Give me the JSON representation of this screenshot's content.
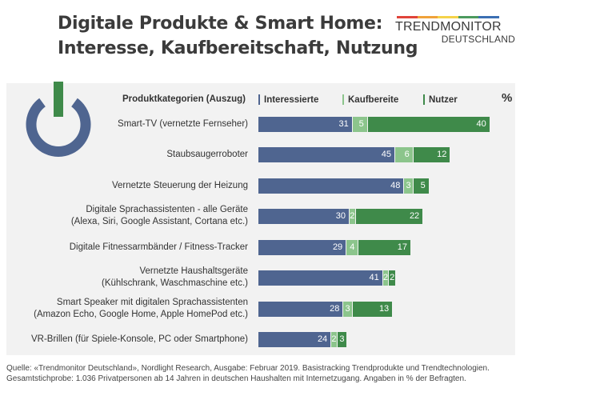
{
  "header": {
    "title_line1": "Digitale Produkte & Smart Home:",
    "title_line2": "Interesse, Kaufbereitschaft, Nutzung",
    "brand_top": "TRENDMONITOR",
    "brand_bottom": "DEUTSCHLAND",
    "brand_colors": [
      "#e0443a",
      "#f0a23a",
      "#f5d34a",
      "#4c9a5e",
      "#3b6fb3"
    ]
  },
  "colors": {
    "interested": "#4f6590",
    "willing": "#8cc58c",
    "users": "#3f8a4a",
    "panel": "#f2f2f2",
    "icon_ring": "#4f6590",
    "icon_stem": "#3f8a4a"
  },
  "legend": {
    "category_header": "Produktkategorien (Auszug)",
    "interested": "Interessierte",
    "willing": "Kaufbereite",
    "users": "Nutzer",
    "percent": "%"
  },
  "chart_data": {
    "type": "bar",
    "orientation": "horizontal",
    "stacked": true,
    "categories": [
      "Smart-TV (vernetzte Fernseher)",
      "Staubsaugerroboter",
      "Vernetzte Steuerung der Heizung",
      "Digitale Sprachassistenten - alle Geräte\n(Alexa, Siri, Google Assistant, Cortana etc.)",
      "Digitale Fitnessarmbänder / Fitness-Tracker",
      "Vernetzte Haushaltsgeräte\n(Kühlschrank, Waschmaschine etc.)",
      "Smart Speaker mit digitalen Sprachassistenten\n(Amazon Echo, Google Home, Apple HomePod etc.)",
      "VR-Brillen (für Spiele-Konsole, PC oder Smartphone)"
    ],
    "series": [
      {
        "name": "Interessierte",
        "values": [
          31,
          45,
          48,
          30,
          29,
          41,
          28,
          24
        ]
      },
      {
        "name": "Kaufbereite",
        "values": [
          5,
          6,
          3,
          2,
          4,
          2,
          3,
          2
        ]
      },
      {
        "name": "Nutzer",
        "values": [
          40,
          12,
          5,
          22,
          17,
          2,
          13,
          3
        ]
      }
    ],
    "unit": "%"
  },
  "source": {
    "line1": "Quelle: «Trendmonitor Deutschland», Nordlight Research, Ausgabe: Februar 2019. Basistracking Trendprodukte und Trendtechnologien.",
    "line2": "Gesamtstichprobe: 1.036 Privatpersonen ab 14 Jahren in deutschen Haushalten mit Internetzugang. Angaben in % der Befragten."
  }
}
